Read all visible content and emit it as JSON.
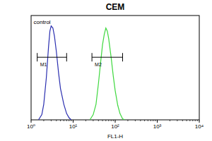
{
  "chart_data": {
    "type": "line",
    "title": "CEM",
    "x_label": "FL1-H",
    "log": "x",
    "tick_labels": "x",
    "xlim": [
      1,
      10000
    ],
    "ylim": [
      0,
      100
    ],
    "xticks": [
      {
        "value": 1,
        "label": "10⁰"
      },
      {
        "value": 10,
        "label": "10¹"
      },
      {
        "value": 100,
        "label": "10²"
      },
      {
        "value": 1000,
        "label": "10³"
      },
      {
        "value": 10000,
        "label": "10⁴"
      }
    ],
    "series": [
      {
        "color": "#2b2fb0",
        "x": [
          1.5,
          1.8,
          2.0,
          2.3,
          2.6,
          2.8,
          3.0,
          3.3,
          3.6,
          4.0,
          4.5,
          5.0,
          6.0,
          7.0,
          8.0,
          9.0
        ],
        "values": [
          0,
          5,
          15,
          40,
          70,
          85,
          90,
          88,
          80,
          65,
          45,
          30,
          15,
          6,
          2,
          0
        ]
      },
      {
        "color": "#3fd83f",
        "x": [
          25,
          30,
          35,
          40,
          45,
          50,
          55,
          60,
          65,
          70,
          80,
          90,
          100,
          115,
          130,
          150,
          170
        ],
        "values": [
          0,
          5,
          15,
          35,
          55,
          72,
          82,
          88,
          85,
          78,
          60,
          42,
          28,
          14,
          6,
          1,
          0
        ]
      }
    ],
    "annotations": [
      {
        "text": "control",
        "x": 1.15,
        "y": 92
      },
      {
        "text": "M1",
        "x": [
          1.4,
          7
        ],
        "y": 60
      },
      {
        "text": "M2",
        "x": [
          28,
          150
        ],
        "y": 60
      }
    ]
  }
}
